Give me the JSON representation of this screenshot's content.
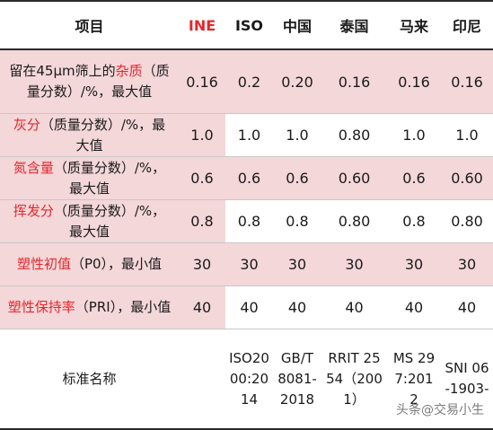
{
  "header": {
    "item": "项目",
    "ine": "INE",
    "iso": "ISO",
    "china": "中国",
    "thailand": "泰国",
    "malaysia": "马来",
    "indonesia": "印尼"
  },
  "rows": [
    {
      "label_pre": "留在45μm筛上的",
      "label_red": "杂质",
      "label_post": "（质量分数）/%，最大值",
      "values": [
        "0.16",
        "0.2",
        "0.20",
        "0.16",
        "0.16",
        "0.16"
      ]
    },
    {
      "label_pre": "",
      "label_red": "灰分",
      "label_post": "（质量分数）/%，最大值",
      "values": [
        "1.0",
        "1.0",
        "1.0",
        "0.80",
        "1.0",
        "1.0"
      ]
    },
    {
      "label_pre": "",
      "label_red": "氮含量",
      "label_post": "（质量分数）/%，最大值",
      "values": [
        "0.6",
        "0.6",
        "0.6",
        "0.60",
        "0.6",
        "0.60"
      ]
    },
    {
      "label_pre": "",
      "label_red": "挥发分",
      "label_post": "（质量分数）/%，最大值",
      "values": [
        "0.8",
        "0.8",
        "0.8",
        "0.80",
        "0.8",
        "0.80"
      ]
    },
    {
      "label_pre": "",
      "label_red": "塑性初值",
      "label_post": "（P0），最小值",
      "values": [
        "30",
        "30",
        "30",
        "30",
        "30",
        "30"
      ]
    },
    {
      "label_pre": "",
      "label_red": "塑性保持率",
      "label_post": "（PRI），最小值",
      "values": [
        "40",
        "40",
        "40",
        "40",
        "40",
        "40"
      ]
    }
  ],
  "standard_row": {
    "label": "标准名称",
    "values": [
      "",
      "ISO2000:2014",
      "GB/T 8081-2018",
      "RRIT 2554（2001）",
      "MS 297:2012",
      "SNI 06-1903-"
    ]
  },
  "watermark": "头条@交易小生",
  "colors": {
    "highlight_red": "#e5272b",
    "row_pink": "#f4d7d9"
  }
}
